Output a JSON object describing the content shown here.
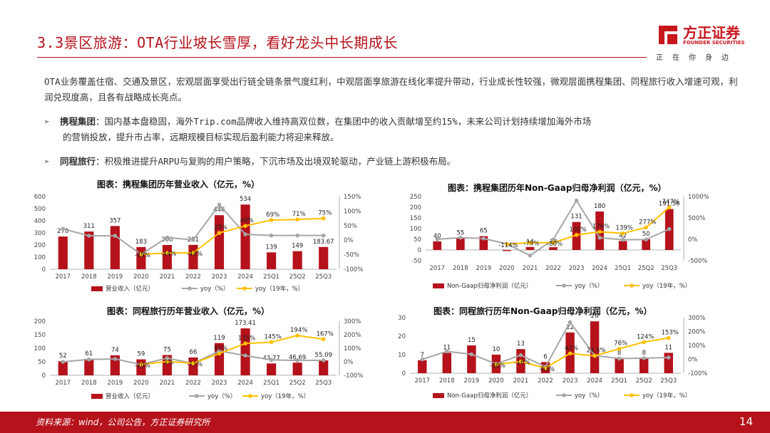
{
  "header": {
    "title": "3.3景区旅游：OTA行业坡长雪厚，看好龙头中长期成长",
    "logo_name": "方正证券",
    "logo_en": "FOUNDER SECURITIES",
    "slogan": "正在你身边",
    "brand_color": "#b5121b"
  },
  "intro": "OTA业务覆盖住宿、交通及景区，宏观层面享受出行链全链条景气度红利，中观层面享旅游在线化率提升带动，行业成长性较强，微观层面携程集团、同程旅行收入增速可观，利润兑现度高，且各有战略成长亮点。",
  "bullets": [
    {
      "label": "携程集团",
      "text": "：国内基本盘稳固，海外Trip.com品牌收入维持高双位数，在集团中的收入贡献增至约15%，未来公司计划持续增加海外市场",
      "cont": "的营销投放，提升市占率，远期规模目标实现后盈利能力将迎来释放。"
    },
    {
      "label": "同程旅行",
      "text": "：积极推进提升ARPU与复购的用户策略，下沉市场及出境双轮驱动，产业链上游积极布局。",
      "cont": ""
    }
  ],
  "colors": {
    "bar": "#b5121b",
    "yoy": "#a6a6a6",
    "yoy19": "#ffc000"
  },
  "chart_data": [
    {
      "type": "bar",
      "title": "图表：携程集团历年营业收入（亿元，%）",
      "categories": [
        "2017",
        "2018",
        "2019",
        "2020",
        "2021",
        "2022",
        "2023",
        "2024",
        "25Q1",
        "25Q2",
        "25Q3"
      ],
      "ylim": [
        0,
        600
      ],
      "yticks": [
        "600",
        "500",
        "400",
        "300",
        "200",
        "100",
        "0"
      ],
      "y2lim": [
        -100,
        150
      ],
      "y2ticks": [
        "150%",
        "100%",
        "50%",
        "0%",
        "-50%",
        "-100%"
      ],
      "series": [
        {
          "name": "营业收入（亿元）",
          "kind": "bar",
          "values": [
            270,
            311,
            357,
            183,
            200,
            201,
            446,
            534,
            139,
            149,
            183.67
          ],
          "labels": [
            "270",
            "311",
            "357",
            "183",
            "200",
            "201",
            "446",
            "534",
            "139",
            "149",
            "183.67"
          ]
        },
        {
          "name": "yoy（%）",
          "kind": "line",
          "axis": "right",
          "values": [
            39,
            15,
            15,
            -49,
            9,
            1,
            122,
            20,
            16,
            16,
            16
          ],
          "labels": []
        },
        {
          "name": "yoy（19年，%）",
          "kind": "line",
          "axis": "right",
          "values": [
            null,
            null,
            null,
            -49,
            -44,
            -44,
            25,
            49,
            69,
            71,
            75
          ],
          "labels": [
            "",
            "",
            "",
            "-49%",
            "-44%",
            "-44%",
            "25%",
            "49%",
            "69%",
            "71%",
            "75%"
          ]
        }
      ]
    },
    {
      "type": "bar",
      "title": "图表：携程集团历年Non-Gaap归母净利润（亿元，%）",
      "categories": [
        "2017",
        "2018",
        "2019",
        "2020",
        "2021",
        "2022",
        "2023",
        "2024",
        "25Q1",
        "25Q2",
        "25Q3"
      ],
      "ylim": [
        -50,
        250
      ],
      "yticks": [
        "250",
        "200",
        "150",
        "100",
        "50",
        "0",
        "-50"
      ],
      "y2lim": [
        -500,
        1000
      ],
      "y2ticks": [
        "1000%",
        "500%",
        "0%",
        "-500%"
      ],
      "series": [
        {
          "name": "Non-Gaap归母净利润（亿元）",
          "kind": "bar",
          "values": [
            40,
            55,
            65,
            -5,
            14,
            13,
            131,
            180,
            42,
            50,
            191.56
          ],
          "labels": [
            "40",
            "55",
            "65",
            "",
            "14",
            "13",
            "131",
            "180",
            "42",
            "50",
            "191.56"
          ]
        },
        {
          "name": "yoy（%）",
          "kind": "line",
          "axis": "right",
          "values": [
            0,
            38,
            18,
            -108,
            -380,
            -7,
            908,
            37,
            -10,
            -5,
            240
          ],
          "labels": []
        },
        {
          "name": "yoy（19年，%）",
          "kind": "line",
          "axis": "right",
          "values": [
            null,
            null,
            null,
            -114,
            -79,
            -80,
            100,
            176,
            139,
            277,
            747
          ],
          "labels": [
            "",
            "",
            "",
            "-114%",
            "-79%",
            "-80%",
            "100%",
            "176%",
            "139%",
            "277%",
            "747%"
          ]
        }
      ]
    },
    {
      "type": "bar",
      "title": "图表：同程旅行历年营业收入（亿元，%）",
      "categories": [
        "2017",
        "2018",
        "2019",
        "2020",
        "2021",
        "2022",
        "2023",
        "2024",
        "25Q1",
        "25Q2",
        "25Q3"
      ],
      "ylim": [
        0,
        200
      ],
      "yticks": [
        "200",
        "150",
        "100",
        "50",
        "0"
      ],
      "y2lim": [
        -100,
        300
      ],
      "y2ticks": [
        "300%",
        "200%",
        "100%",
        "0%",
        "-100%"
      ],
      "series": [
        {
          "name": "营业收入（亿元）",
          "kind": "bar",
          "values": [
            52,
            61,
            74,
            59,
            75,
            66,
            119,
            173.41,
            43.77,
            46.69,
            55.09
          ],
          "labels": [
            "52",
            "61",
            "74",
            "59",
            "75",
            "66",
            "119",
            "173.41",
            "43.77",
            "46.69",
            "55.09"
          ]
        },
        {
          "name": "yoy（%）",
          "kind": "line",
          "axis": "right",
          "values": [
            0,
            17,
            21,
            -20,
            27,
            -12,
            80,
            46,
            14,
            10,
            11
          ],
          "labels": []
        },
        {
          "name": "yoy（19年，%）",
          "kind": "line",
          "axis": "right",
          "values": [
            null,
            null,
            null,
            -20,
            2,
            -11,
            61,
            135,
            145,
            194,
            167
          ],
          "labels": [
            "",
            "",
            "",
            "-20%",
            "2%",
            "-11%",
            "61%",
            "135%",
            "145%",
            "194%",
            "167%"
          ]
        }
      ]
    },
    {
      "type": "bar",
      "title": "图表：同程旅行历年Non-Gaap归母净利润（亿元，%）",
      "categories": [
        "2017",
        "2018",
        "2019",
        "2020",
        "2021",
        "2022",
        "2023",
        "2024",
        "25Q1",
        "25Q2",
        "25Q3"
      ],
      "ylim": [
        0,
        30
      ],
      "yticks": [
        "30",
        "20",
        "10",
        "0"
      ],
      "y2lim": [
        -100,
        300
      ],
      "y2ticks": [
        "300%",
        "200%",
        "100%",
        "0%",
        "-100%"
      ],
      "series": [
        {
          "name": "Non-Gaap归母净利润（亿元）",
          "kind": "bar",
          "values": [
            7,
            11,
            15,
            10,
            13,
            6,
            22,
            28,
            8,
            8,
            11
          ],
          "labels": [
            "7",
            "11",
            "15",
            "10",
            "13",
            "6",
            "22",
            "28",
            "8",
            "8",
            "11"
          ]
        },
        {
          "name": "yoy（%）",
          "kind": "line",
          "axis": "right",
          "values": [
            0,
            57,
            36,
            -33,
            30,
            -54,
            267,
            27,
            5,
            8,
            13
          ],
          "labels": []
        },
        {
          "name": "yoy（19年，%）",
          "kind": "line",
          "axis": "right",
          "values": [
            null,
            null,
            null,
            -38,
            -16,
            -63,
            42,
            24.5,
            76,
            124,
            153
          ],
          "labels": [
            "",
            "",
            "",
            "-38%",
            "-16%",
            "-63%",
            "42%",
            "24.5%",
            "76%",
            "124%",
            "153%"
          ]
        }
      ]
    }
  ],
  "footer": {
    "source": "资料来源：wind，公司公告，方正证券研究所",
    "page": "14"
  }
}
